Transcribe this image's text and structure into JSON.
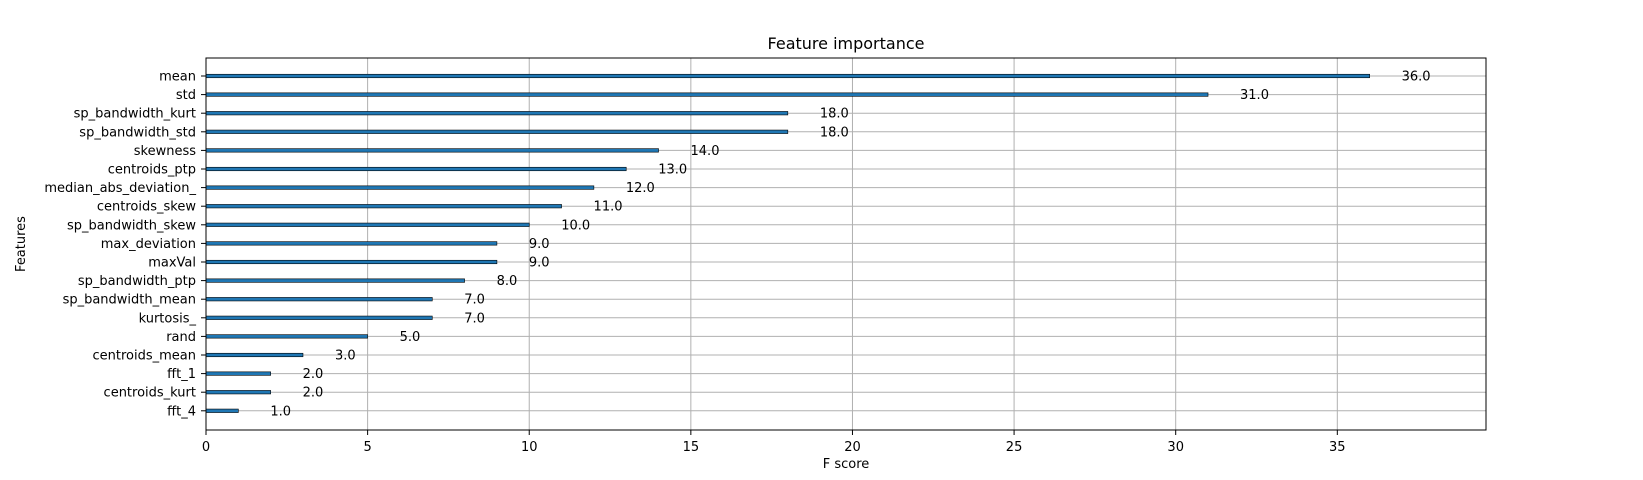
{
  "chart_data": {
    "type": "bar",
    "orientation": "horizontal",
    "title": "Feature importance",
    "xlabel": "F score",
    "ylabel": "Features",
    "xlim": [
      0,
      39.6
    ],
    "xticks": [
      0,
      5,
      10,
      15,
      20,
      25,
      30,
      35
    ],
    "grid": true,
    "bar_color": "#1f77b4",
    "categories": [
      "mean",
      "std",
      "sp_bandwidth_kurt",
      "sp_bandwidth_std",
      "skewness",
      "centroids_ptp",
      "median_abs_deviation_",
      "centroids_skew",
      "sp_bandwidth_skew",
      "max_deviation",
      "maxVal",
      "sp_bandwidth_ptp",
      "sp_bandwidth_mean",
      "kurtosis_",
      "rand",
      "centroids_mean",
      "fft_1",
      "centroids_kurt",
      "fft_4"
    ],
    "values": [
      36,
      31,
      18,
      18,
      14,
      13,
      12,
      11,
      10,
      9,
      9,
      8,
      7,
      7,
      5,
      3,
      2,
      2,
      1
    ],
    "value_labels": [
      "36.0",
      "31.0",
      "18.0",
      "18.0",
      "14.0",
      "13.0",
      "12.0",
      "11.0",
      "10.0",
      "9.0",
      "9.0",
      "8.0",
      "7.0",
      "7.0",
      "5.0",
      "3.0",
      "2.0",
      "2.0",
      "1.0"
    ]
  }
}
